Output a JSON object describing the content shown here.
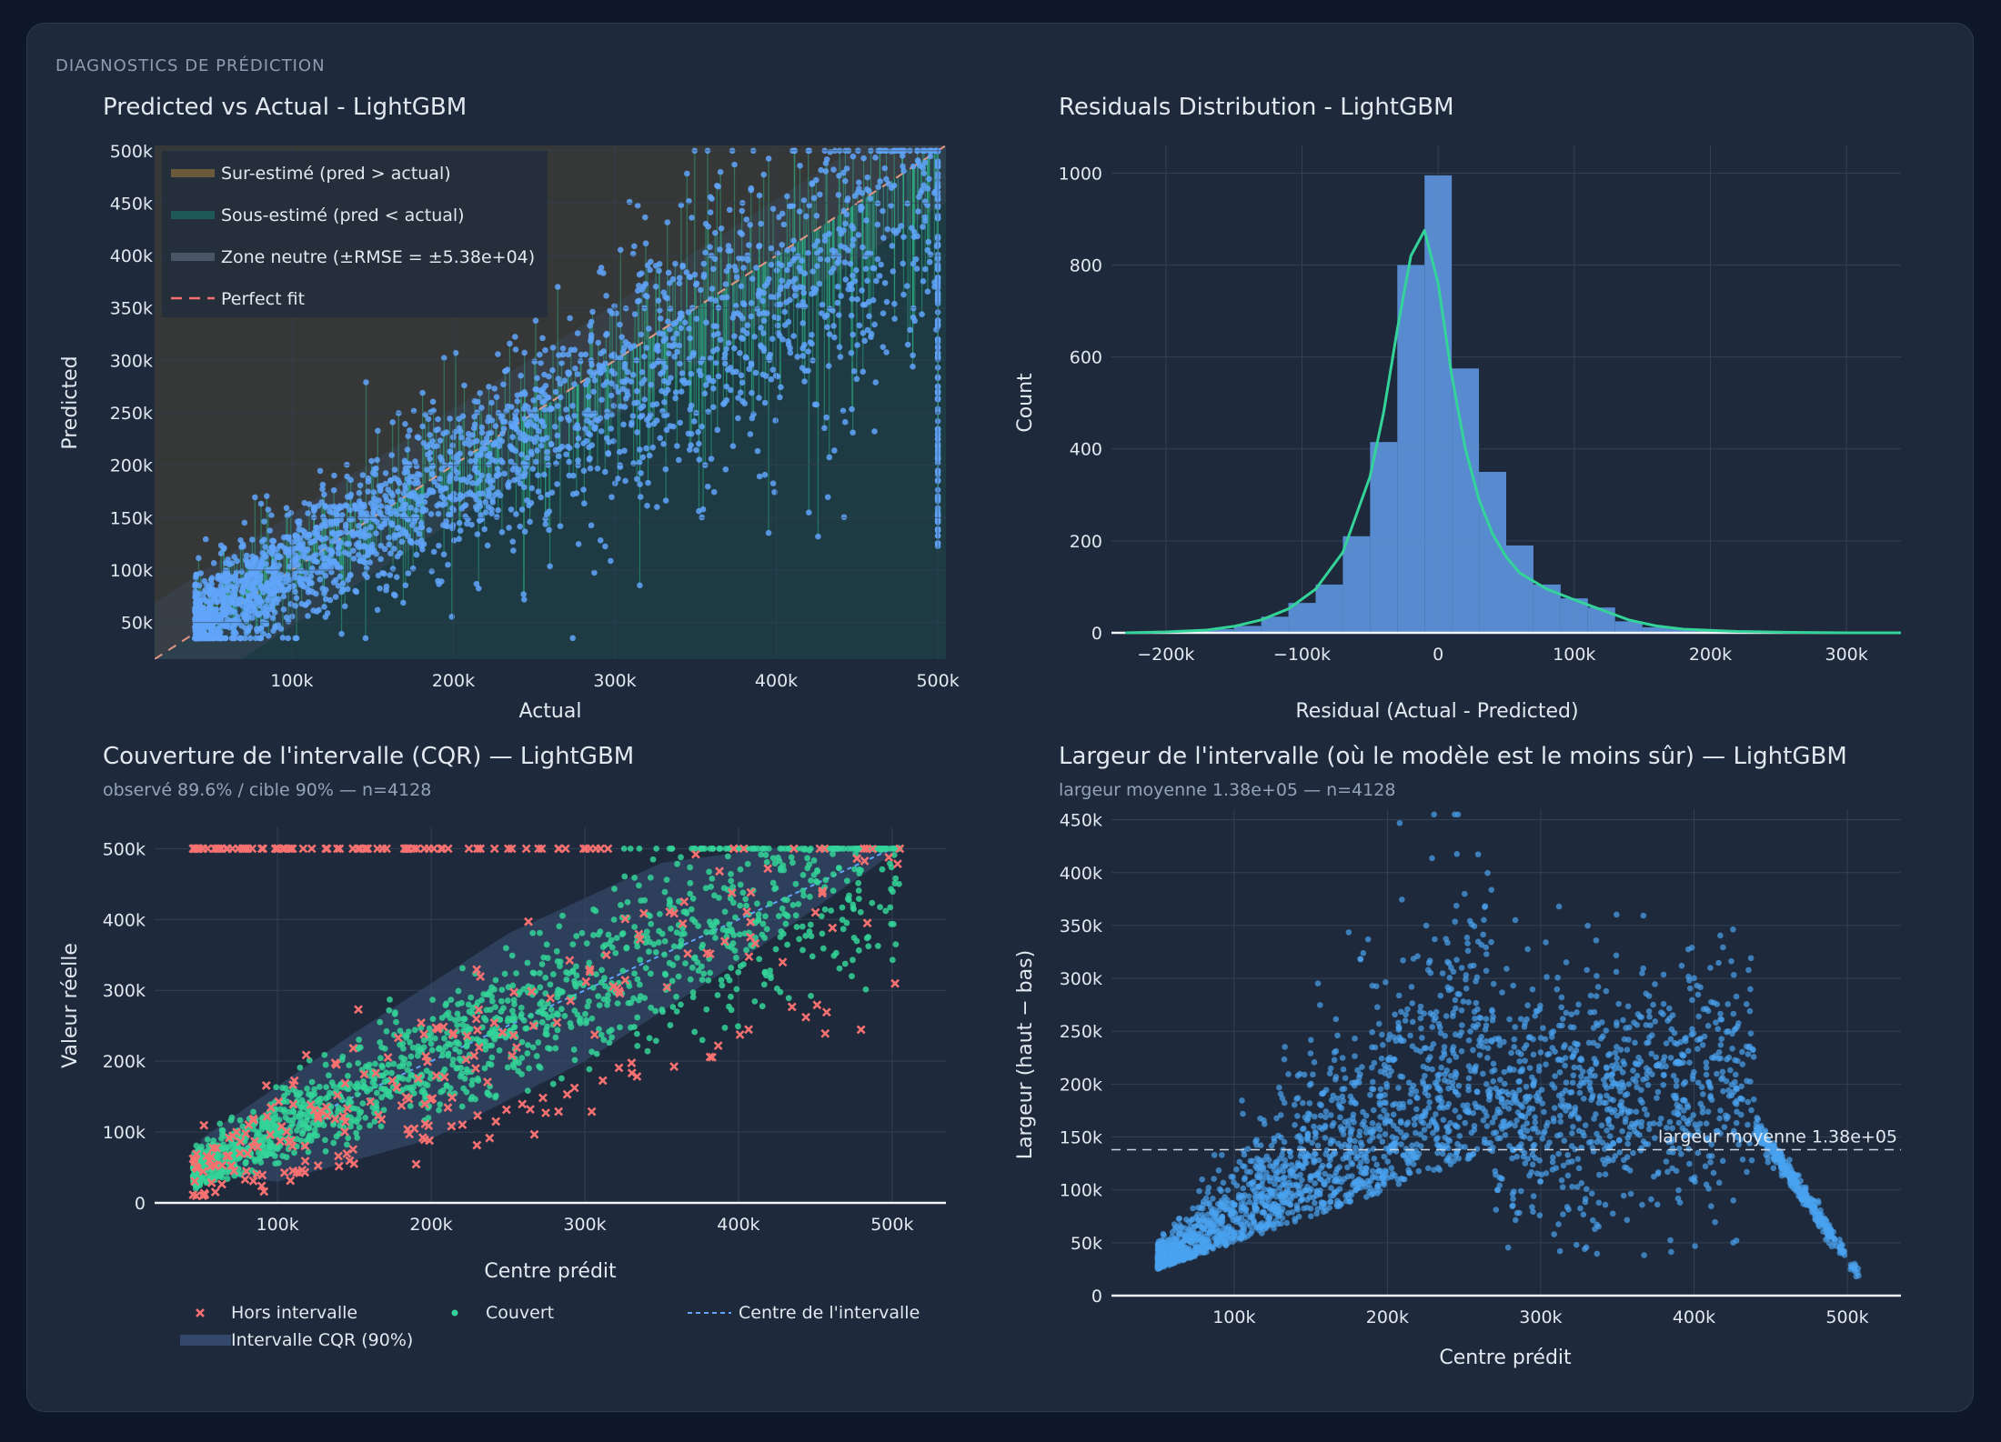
{
  "header": {
    "label": "DIAGNOSTICS DE PRÉDICTION"
  },
  "colors": {
    "background": "#0f1829",
    "panel": "#1e293b",
    "grid": "#334155",
    "text": "#e2e8f0",
    "muted": "#94a3b8",
    "blue_points": "#60a5fa",
    "green": "#34d399",
    "red": "#f87171",
    "hist_bar": "#5b8fd6",
    "perfect_fit": "#f87171",
    "width_points": "#4aa3f0"
  },
  "chart_data": [
    {
      "id": "pred_vs_actual",
      "type": "scatter",
      "title": "Predicted vs Actual - LightGBM",
      "xlabel": "Actual",
      "ylabel": "Predicted",
      "xlim": [
        15000,
        505000
      ],
      "ylim": [
        15000,
        505000
      ],
      "x_ticks": [
        100000,
        200000,
        300000,
        400000,
        500000
      ],
      "x_tick_labels": [
        "100k",
        "200k",
        "300k",
        "400k",
        "500k"
      ],
      "y_ticks": [
        50000,
        100000,
        150000,
        200000,
        250000,
        300000,
        350000,
        400000,
        450000,
        500000
      ],
      "y_tick_labels": [
        "50k",
        "100k",
        "150k",
        "200k",
        "250k",
        "300k",
        "350k",
        "400k",
        "450k",
        "500k"
      ],
      "rmse": 53800,
      "legend_position": "top-left",
      "legend": [
        {
          "label": "Sur-estimé (pred > actual)",
          "kind": "band",
          "color": "#6b5a3a"
        },
        {
          "label": "Sous-estimé (pred < actual)",
          "kind": "band",
          "color": "#1e5a55"
        },
        {
          "label": "Zone neutre (±RMSE = ±5.38e+04)",
          "kind": "band",
          "color": "#4a5566"
        },
        {
          "label": "Perfect fit",
          "kind": "dash",
          "color": "#f87171"
        }
      ],
      "grid": true
    },
    {
      "id": "residuals",
      "type": "bar",
      "title": "Residuals Distribution - LightGBM",
      "xlabel": "Residual (Actual - Predicted)",
      "ylabel": "Count",
      "xlim": [
        -240000,
        340000
      ],
      "ylim": [
        0,
        1060
      ],
      "x_ticks": [
        -200000,
        -100000,
        0,
        100000,
        200000,
        300000
      ],
      "x_tick_labels": [
        "−200k",
        "−100k",
        "0",
        "100k",
        "200k",
        "300k"
      ],
      "y_ticks": [
        0,
        200,
        400,
        600,
        800,
        1000
      ],
      "y_tick_labels": [
        "0",
        "200",
        "400",
        "600",
        "800",
        "1000"
      ],
      "bin_edges": [
        -230000,
        -210000,
        -190000,
        -170000,
        -150000,
        -130000,
        -110000,
        -90000,
        -70000,
        -50000,
        -30000,
        -10000,
        10000,
        30000,
        50000,
        70000,
        90000,
        110000,
        130000,
        150000,
        170000,
        190000,
        210000,
        230000,
        250000,
        270000,
        290000,
        310000,
        330000
      ],
      "counts": [
        1,
        2,
        3,
        8,
        15,
        35,
        65,
        105,
        210,
        415,
        800,
        995,
        575,
        350,
        190,
        105,
        75,
        55,
        25,
        12,
        8,
        4,
        2,
        1,
        1,
        0,
        0,
        1
      ],
      "kde": {
        "x": [
          -230000,
          -200000,
          -170000,
          -150000,
          -130000,
          -110000,
          -90000,
          -70000,
          -50000,
          -40000,
          -30000,
          -20000,
          -10000,
          0,
          10000,
          20000,
          30000,
          40000,
          50000,
          60000,
          80000,
          100000,
          120000,
          140000,
          160000,
          180000,
          220000,
          260000,
          300000,
          340000
        ],
        "y": [
          0,
          2,
          6,
          14,
          28,
          52,
          95,
          175,
          340,
          480,
          660,
          820,
          875,
          760,
          560,
          400,
          290,
          215,
          165,
          130,
          95,
          72,
          50,
          28,
          15,
          8,
          3,
          1,
          0,
          0
        ]
      },
      "grid": true
    },
    {
      "id": "coverage",
      "type": "scatter",
      "title": "Couverture de l'intervalle (CQR) — LightGBM",
      "subtitle": "observé 89.6% / cible 90% — n=4128",
      "xlabel": "Centre prédit",
      "ylabel": "Valeur réelle",
      "xlim": [
        20000,
        535000
      ],
      "ylim": [
        0,
        530000
      ],
      "x_ticks": [
        100000,
        200000,
        300000,
        400000,
        500000
      ],
      "x_tick_labels": [
        "100k",
        "200k",
        "300k",
        "400k",
        "500k"
      ],
      "y_ticks": [
        0,
        100000,
        200000,
        300000,
        400000,
        500000
      ],
      "y_tick_labels": [
        "0",
        "100k",
        "200k",
        "300k",
        "400k",
        "500k"
      ],
      "observed_coverage": 89.6,
      "target_coverage": 90,
      "n": 4128,
      "legend_position": "bottom",
      "legend": [
        {
          "label": "Hors intervalle",
          "kind": "x",
          "color": "#f87171"
        },
        {
          "label": "Couvert",
          "kind": "dot",
          "color": "#34d399"
        },
        {
          "label": "Centre de l'intervalle",
          "kind": "dash",
          "color": "#60a5fa"
        },
        {
          "label": "Intervalle CQR (90%)",
          "kind": "band",
          "color": "#33486a"
        }
      ],
      "grid": true
    },
    {
      "id": "width",
      "type": "scatter",
      "title": "Largeur de l'intervalle (où le modèle est le moins sûr) — LightGBM",
      "subtitle": "largeur moyenne 1.38e+05 — n=4128",
      "xlabel": "Centre prédit",
      "ylabel": "Largeur (haut − bas)",
      "xlim": [
        20000,
        535000
      ],
      "ylim": [
        0,
        460000
      ],
      "x_ticks": [
        100000,
        200000,
        300000,
        400000,
        500000
      ],
      "x_tick_labels": [
        "100k",
        "200k",
        "300k",
        "400k",
        "500k"
      ],
      "y_ticks": [
        0,
        50000,
        100000,
        150000,
        200000,
        250000,
        300000,
        350000,
        400000,
        450000
      ],
      "y_tick_labels": [
        "0",
        "50k",
        "100k",
        "150k",
        "200k",
        "250k",
        "300k",
        "350k",
        "400k",
        "450k"
      ],
      "mean_width": 138000,
      "mean_label": "largeur moyenne 1.38e+05",
      "grid": true
    }
  ]
}
